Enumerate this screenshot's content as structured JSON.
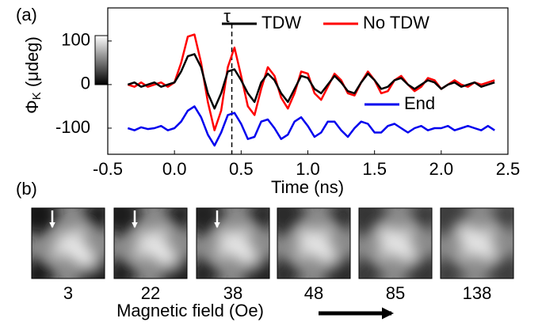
{
  "chart_data": {
    "type": "line",
    "panel_label": "(a)",
    "xlabel": "Time (ns)",
    "ylabel_symbol": "Φ",
    "ylabel_sub": "K",
    "ylabel_unit": "(μdeg)",
    "x": [
      -0.35,
      -0.3,
      -0.25,
      -0.2,
      -0.15,
      -0.1,
      -0.05,
      0.0,
      0.05,
      0.1,
      0.15,
      0.2,
      0.25,
      0.3,
      0.35,
      0.4,
      0.45,
      0.5,
      0.55,
      0.6,
      0.65,
      0.7,
      0.75,
      0.8,
      0.85,
      0.9,
      0.95,
      1.0,
      1.05,
      1.1,
      1.15,
      1.2,
      1.25,
      1.3,
      1.35,
      1.4,
      1.45,
      1.5,
      1.55,
      1.6,
      1.65,
      1.7,
      1.75,
      1.8,
      1.85,
      1.9,
      1.95,
      2.0,
      2.05,
      2.1,
      2.15,
      2.2,
      2.25,
      2.3,
      2.35,
      2.4
    ],
    "series": [
      {
        "name": "TDW",
        "color": "#000000",
        "values": [
          0,
          5,
          -5,
          0,
          5,
          -5,
          0,
          5,
          30,
          65,
          70,
          40,
          -20,
          -55,
          -20,
          30,
          35,
          10,
          -20,
          -40,
          5,
          25,
          10,
          -20,
          -40,
          -10,
          20,
          15,
          -10,
          -20,
          0,
          20,
          5,
          -15,
          -20,
          5,
          25,
          10,
          -10,
          -5,
          10,
          15,
          0,
          -10,
          0,
          10,
          5,
          -10,
          0,
          5,
          -5,
          0,
          5,
          -5,
          0,
          5
        ]
      },
      {
        "name": "No TDW",
        "color": "#ff0000",
        "values": [
          0,
          -5,
          5,
          -5,
          0,
          5,
          -5,
          5,
          50,
          110,
          115,
          50,
          -40,
          -105,
          -60,
          40,
          85,
          20,
          -50,
          -70,
          -10,
          40,
          20,
          -30,
          -55,
          -20,
          30,
          25,
          -20,
          -35,
          -5,
          25,
          10,
          -20,
          -25,
          5,
          30,
          10,
          -20,
          -15,
          10,
          20,
          0,
          -15,
          -5,
          15,
          10,
          -10,
          0,
          10,
          0,
          -5,
          5,
          0,
          5,
          10
        ]
      },
      {
        "name": "End",
        "color": "#0000ee",
        "values": [
          -100,
          -105,
          -98,
          -102,
          -100,
          -95,
          -105,
          -100,
          -85,
          -60,
          -50,
          -75,
          -115,
          -140,
          -110,
          -70,
          -65,
          -90,
          -125,
          -120,
          -85,
          -80,
          -100,
          -125,
          -115,
          -85,
          -75,
          -95,
          -120,
          -110,
          -85,
          -85,
          -105,
          -120,
          -100,
          -85,
          -90,
          -110,
          -110,
          -95,
          -90,
          -100,
          -110,
          -100,
          -95,
          -105,
          -100,
          -100,
          -95,
          -105,
          -100,
          -95,
          -100,
          -105,
          -95,
          -105
        ]
      }
    ],
    "xlim": [
      -0.5,
      2.5
    ],
    "xticks": [
      -0.5,
      {
        "value": 0,
        "label": "0.0"
      },
      0.5,
      {
        "value": 1,
        "label": "1.0"
      },
      1.5,
      {
        "value": 2,
        "label": "2.0"
      },
      2.5
    ],
    "ylim": [
      -160,
      176
    ],
    "yticks": [
      -100,
      0,
      100
    ],
    "annotation": {
      "text": "τ",
      "x": 0.43
    }
  },
  "panel_b": {
    "label": "(b)",
    "fields": [
      3,
      22,
      38,
      48,
      85,
      138
    ],
    "marked": [
      true,
      true,
      true,
      false,
      false,
      false
    ],
    "xlabel": "Magnetic field (Oe)"
  }
}
